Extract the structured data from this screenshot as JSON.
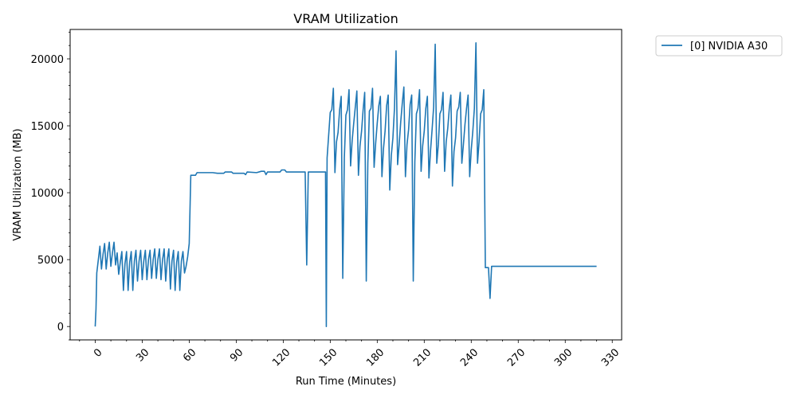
{
  "chart_data": {
    "type": "line",
    "title": "VRAM Utilization",
    "xlabel": "Run Time (Minutes)",
    "ylabel": "VRAM Utilization (MB)",
    "xlim": [
      -16,
      336
    ],
    "ylim": [
      -1000,
      22200
    ],
    "xticks": [
      0,
      30,
      60,
      90,
      120,
      150,
      180,
      210,
      240,
      270,
      300,
      330
    ],
    "yticks": [
      0,
      5000,
      10000,
      15000,
      20000
    ],
    "legend_position": "outside-top-right",
    "grid": false,
    "series": [
      {
        "name": "[0] NVIDIA A30",
        "color": "#1f77b4",
        "points": [
          [
            0,
            0
          ],
          [
            0.5,
            1300
          ],
          [
            1,
            4000
          ],
          [
            2,
            5000
          ],
          [
            3,
            6000
          ],
          [
            4,
            4300
          ],
          [
            5,
            5400
          ],
          [
            6,
            6200
          ],
          [
            7,
            4300
          ],
          [
            8,
            5500
          ],
          [
            9,
            6300
          ],
          [
            10,
            4500
          ],
          [
            11,
            5500
          ],
          [
            12,
            6300
          ],
          [
            13,
            4600
          ],
          [
            14,
            5500
          ],
          [
            15,
            3900
          ],
          [
            16,
            4800
          ],
          [
            17,
            5600
          ],
          [
            18,
            2700
          ],
          [
            19,
            4700
          ],
          [
            20,
            5600
          ],
          [
            21,
            2700
          ],
          [
            22,
            4800
          ],
          [
            23,
            5600
          ],
          [
            24,
            2700
          ],
          [
            25,
            4900
          ],
          [
            26,
            5700
          ],
          [
            27,
            3400
          ],
          [
            28,
            4900
          ],
          [
            29,
            5700
          ],
          [
            30,
            3500
          ],
          [
            31,
            4900
          ],
          [
            32,
            5700
          ],
          [
            33,
            3500
          ],
          [
            34,
            5000
          ],
          [
            35,
            5700
          ],
          [
            36,
            3600
          ],
          [
            37,
            5000
          ],
          [
            38,
            5800
          ],
          [
            39,
            3600
          ],
          [
            40,
            5000
          ],
          [
            41,
            5800
          ],
          [
            42,
            3500
          ],
          [
            43,
            5000
          ],
          [
            44,
            5800
          ],
          [
            45,
            3400
          ],
          [
            46,
            5000
          ],
          [
            47,
            5800
          ],
          [
            48,
            2800
          ],
          [
            49,
            4900
          ],
          [
            50,
            5700
          ],
          [
            51,
            2700
          ],
          [
            52,
            4800
          ],
          [
            53,
            5600
          ],
          [
            54,
            2700
          ],
          [
            55,
            4900
          ],
          [
            56,
            5600
          ],
          [
            57,
            4000
          ],
          [
            58,
            4500
          ],
          [
            59,
            5200
          ],
          [
            60,
            6200
          ],
          [
            61,
            11300
          ],
          [
            64,
            11300
          ],
          [
            65,
            11500
          ],
          [
            75,
            11500
          ],
          [
            78,
            11450
          ],
          [
            82,
            11450
          ],
          [
            83,
            11550
          ],
          [
            87,
            11550
          ],
          [
            88,
            11450
          ],
          [
            95,
            11450
          ],
          [
            96,
            11350
          ],
          [
            97,
            11550
          ],
          [
            103,
            11500
          ],
          [
            106,
            11600
          ],
          [
            108,
            11600
          ],
          [
            109,
            11350
          ],
          [
            110,
            11550
          ],
          [
            118,
            11550
          ],
          [
            119,
            11700
          ],
          [
            121,
            11700
          ],
          [
            122,
            11550
          ],
          [
            134,
            11550
          ],
          [
            135,
            4600
          ],
          [
            136,
            11550
          ],
          [
            147,
            11550
          ],
          [
            147.5,
            0
          ],
          [
            148,
            12600
          ],
          [
            150,
            16000
          ],
          [
            151,
            16200
          ],
          [
            152,
            17800
          ],
          [
            153,
            11500
          ],
          [
            154,
            13800
          ],
          [
            155,
            14500
          ],
          [
            156,
            16200
          ],
          [
            157,
            17200
          ],
          [
            158,
            3600
          ],
          [
            159,
            12600
          ],
          [
            160,
            15800
          ],
          [
            161,
            16200
          ],
          [
            162,
            17700
          ],
          [
            163,
            12000
          ],
          [
            164,
            13900
          ],
          [
            165,
            15200
          ],
          [
            166,
            16400
          ],
          [
            167,
            17600
          ],
          [
            168,
            11300
          ],
          [
            169,
            13500
          ],
          [
            170,
            14600
          ],
          [
            171,
            16200
          ],
          [
            172,
            17500
          ],
          [
            173,
            3400
          ],
          [
            174,
            12200
          ],
          [
            175,
            16100
          ],
          [
            176,
            16300
          ],
          [
            177,
            17800
          ],
          [
            178,
            11900
          ],
          [
            179,
            13700
          ],
          [
            180,
            15200
          ],
          [
            181,
            16500
          ],
          [
            182,
            17200
          ],
          [
            183,
            11200
          ],
          [
            184,
            13300
          ],
          [
            185,
            14600
          ],
          [
            186,
            16500
          ],
          [
            187,
            17300
          ],
          [
            188,
            10200
          ],
          [
            189,
            12800
          ],
          [
            190,
            14100
          ],
          [
            191,
            16300
          ],
          [
            192,
            20600
          ],
          [
            193,
            12100
          ],
          [
            194,
            13600
          ],
          [
            195,
            15300
          ],
          [
            196,
            16700
          ],
          [
            197,
            17900
          ],
          [
            198,
            11200
          ],
          [
            199,
            13600
          ],
          [
            200,
            14700
          ],
          [
            201,
            16600
          ],
          [
            202,
            17300
          ],
          [
            203,
            3400
          ],
          [
            204,
            12300
          ],
          [
            205,
            15900
          ],
          [
            206,
            16300
          ],
          [
            207,
            17700
          ],
          [
            208,
            11600
          ],
          [
            209,
            13500
          ],
          [
            210,
            14600
          ],
          [
            211,
            16300
          ],
          [
            212,
            17200
          ],
          [
            213,
            11100
          ],
          [
            214,
            13100
          ],
          [
            215,
            14700
          ],
          [
            216,
            16400
          ],
          [
            217,
            21100
          ],
          [
            218,
            12200
          ],
          [
            219,
            13600
          ],
          [
            220,
            15900
          ],
          [
            221,
            16200
          ],
          [
            222,
            17500
          ],
          [
            223,
            11600
          ],
          [
            224,
            13800
          ],
          [
            225,
            14800
          ],
          [
            226,
            16300
          ],
          [
            227,
            17300
          ],
          [
            228,
            10500
          ],
          [
            229,
            13100
          ],
          [
            230,
            14100
          ],
          [
            231,
            16100
          ],
          [
            232,
            16400
          ],
          [
            233,
            17500
          ],
          [
            234,
            12200
          ],
          [
            235,
            13600
          ],
          [
            236,
            15100
          ],
          [
            237,
            16300
          ],
          [
            238,
            17300
          ],
          [
            239,
            11200
          ],
          [
            240,
            13200
          ],
          [
            241,
            14600
          ],
          [
            242,
            16300
          ],
          [
            243,
            21200
          ],
          [
            244,
            12200
          ],
          [
            245,
            13800
          ],
          [
            246,
            15900
          ],
          [
            247,
            16200
          ],
          [
            248,
            17700
          ],
          [
            249,
            4400
          ],
          [
            251,
            4400
          ],
          [
            252,
            2100
          ],
          [
            253,
            4500
          ],
          [
            280,
            4500
          ],
          [
            282,
            4500
          ],
          [
            283,
            4500
          ],
          [
            320,
            4500
          ]
        ]
      }
    ]
  }
}
